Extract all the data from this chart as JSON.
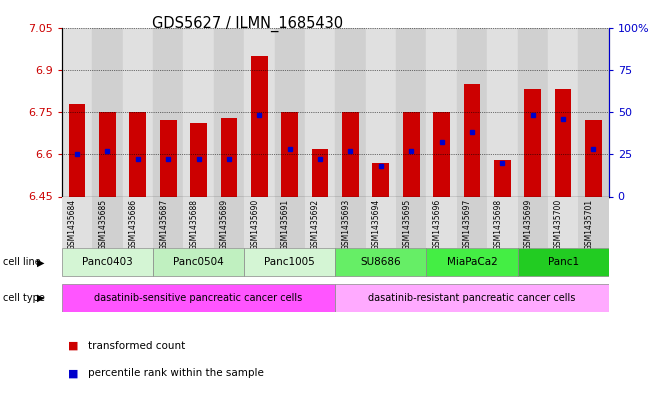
{
  "title": "GDS5627 / ILMN_1685430",
  "samples": [
    "GSM1435684",
    "GSM1435685",
    "GSM1435686",
    "GSM1435687",
    "GSM1435688",
    "GSM1435689",
    "GSM1435690",
    "GSM1435691",
    "GSM1435692",
    "GSM1435693",
    "GSM1435694",
    "GSM1435695",
    "GSM1435696",
    "GSM1435697",
    "GSM1435698",
    "GSM1435699",
    "GSM1435700",
    "GSM1435701"
  ],
  "red_values": [
    6.78,
    6.75,
    6.75,
    6.72,
    6.71,
    6.73,
    6.95,
    6.75,
    6.62,
    6.75,
    6.57,
    6.75,
    6.75,
    6.85,
    6.58,
    6.83,
    6.83,
    6.72
  ],
  "blue_percentiles": [
    25,
    27,
    22,
    22,
    22,
    22,
    48,
    28,
    22,
    27,
    18,
    27,
    32,
    38,
    20,
    48,
    46,
    28
  ],
  "y_min": 6.45,
  "y_max": 7.05,
  "y_ticks": [
    6.45,
    6.6,
    6.75,
    6.9,
    7.05
  ],
  "right_y_ticks": [
    0,
    25,
    50,
    75,
    100
  ],
  "cell_lines": [
    {
      "name": "Panc0403",
      "start": 0,
      "end": 3
    },
    {
      "name": "Panc0504",
      "start": 3,
      "end": 6
    },
    {
      "name": "Panc1005",
      "start": 6,
      "end": 9
    },
    {
      "name": "SU8686",
      "start": 9,
      "end": 12
    },
    {
      "name": "MiaPaCa2",
      "start": 12,
      "end": 15
    },
    {
      "name": "Panc1",
      "start": 15,
      "end": 18
    }
  ],
  "cell_line_colors": [
    "#d4f5d4",
    "#c0f0c0",
    "#d4f5d4",
    "#66ee66",
    "#44ee44",
    "#22cc22"
  ],
  "cell_type_groups": [
    {
      "name": "dasatinib-sensitive pancreatic cancer cells",
      "start": 0,
      "end": 9
    },
    {
      "name": "dasatinib-resistant pancreatic cancer cells",
      "start": 9,
      "end": 18
    }
  ],
  "cell_type_colors": [
    "#ff55ff",
    "#ffaaff"
  ],
  "bar_color": "#cc0000",
  "dot_color": "#0000cc",
  "tick_color_left": "#cc0000",
  "tick_color_right": "#0000cc",
  "plot_bg": "#ffffff",
  "sample_col_bg_even": "#e0e0e0",
  "sample_col_bg_odd": "#d0d0d0"
}
